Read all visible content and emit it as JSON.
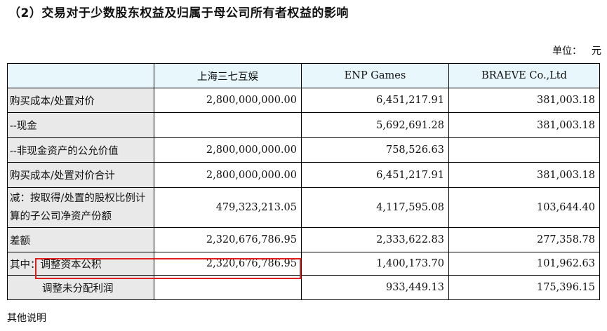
{
  "heading": "（2）交易对于少数股东权益及归属于母公司所有者权益的影响",
  "unit": {
    "label": "单位：",
    "value": "元"
  },
  "table": {
    "columns": [
      "",
      "上海三七互娱",
      "ENP Games",
      "BRAEVE Co.,Ltd"
    ],
    "rows": [
      {
        "label": "购买成本/处置对价",
        "values": [
          "2,800,000,000.00",
          "6,451,217.91",
          "381,003.18"
        ]
      },
      {
        "label": "--现金",
        "values": [
          "",
          "5,692,691.28",
          "381,003.18"
        ]
      },
      {
        "label": "--非现金资产的公允价值",
        "values": [
          "2,800,000,000.00",
          "758,526.63",
          ""
        ]
      },
      {
        "label": "购买成本/处置对价合计",
        "values": [
          "2,800,000,000.00",
          "6,451,217.91",
          "381,003.18"
        ]
      },
      {
        "label": "减：按取得/处置的股权比例计算的子公司净资产份额",
        "values": [
          "479,323,213.05",
          "4,117,595.08",
          "103,644.40"
        ]
      },
      {
        "label": "差额",
        "values": [
          "2,320,676,786.95",
          "2,333,622.83",
          "277,358.78"
        ]
      },
      {
        "label_prefix": "其中：",
        "label": "调整资本公积",
        "values": [
          "2,320,676,786.95",
          "1,400,173.70",
          "101,962.63"
        ]
      },
      {
        "label": "调整未分配利润",
        "values": [
          "",
          "933,449.13",
          "175,396.15"
        ]
      }
    ]
  },
  "highlight_color": "#e02020",
  "footer": "其他说明"
}
